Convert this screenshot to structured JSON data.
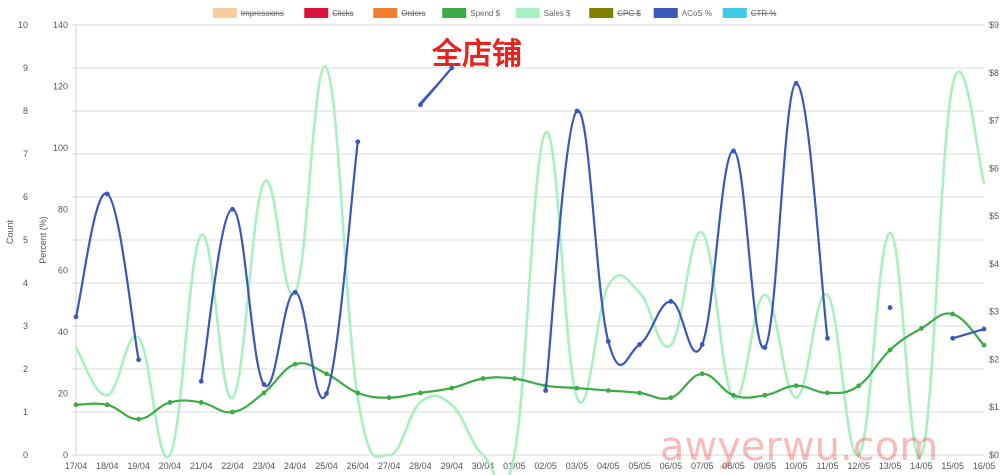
{
  "chart_data": {
    "type": "line",
    "annotation": "全店铺",
    "watermark": "awyerwu.com",
    "categories": [
      "17/04",
      "18/04",
      "19/04",
      "20/04",
      "21/04",
      "22/04",
      "23/04",
      "24/04",
      "25/04",
      "26/04",
      "27/04",
      "28/04",
      "29/04",
      "30/04",
      "01/05",
      "02/05",
      "03/05",
      "04/05",
      "05/05",
      "06/05",
      "07/05",
      "08/05",
      "09/05",
      "10/05",
      "11/05",
      "12/05",
      "13/05",
      "14/05",
      "15/05",
      "16/05"
    ],
    "axes": {
      "count": {
        "label": "Count",
        "min": 0,
        "max": 10,
        "ticks": [
          0,
          1,
          2,
          3,
          4,
          5,
          6,
          7,
          8,
          9,
          10
        ]
      },
      "percent": {
        "label": "Percent (%)",
        "min": 0,
        "max": 140,
        "ticks": [
          0,
          20,
          40,
          60,
          80,
          100,
          120,
          140
        ]
      },
      "dollar": {
        "label": "",
        "min": 0,
        "max": 9,
        "ticks": [
          "$0",
          "$1",
          "$2",
          "$3",
          "$4",
          "$5",
          "$6",
          "$7",
          "$8",
          "$9"
        ]
      }
    },
    "legend": [
      {
        "name": "Impressions",
        "color": "#f8cc9c",
        "hidden": true
      },
      {
        "name": "Clicks",
        "color": "#dc143c",
        "hidden": true
      },
      {
        "name": "Orders",
        "color": "#f08030",
        "hidden": true
      },
      {
        "name": "Spend $",
        "color": "#3cab46",
        "hidden": false
      },
      {
        "name": "Sales $",
        "color": "#a8f0c0",
        "hidden": false
      },
      {
        "name": "CPC $",
        "color": "#808000",
        "hidden": true
      },
      {
        "name": "ACoS %",
        "color": "#3b57b8",
        "hidden": false
      },
      {
        "name": "CTR %",
        "color": "#40c8e8",
        "hidden": true
      }
    ],
    "series": [
      {
        "name": "Spend $",
        "axis": "dollar",
        "color": "#3cab46",
        "values": [
          1.05,
          1.05,
          0.75,
          1.1,
          1.1,
          0.9,
          1.3,
          1.9,
          1.7,
          1.3,
          1.2,
          1.3,
          1.4,
          1.6,
          1.6,
          1.45,
          1.4,
          1.35,
          1.3,
          1.2,
          1.7,
          1.25,
          1.25,
          1.45,
          1.3,
          1.45,
          2.2,
          2.65,
          2.95,
          2.3
        ]
      },
      {
        "name": "Sales $",
        "axis": "dollar",
        "color": "#a8f0c0",
        "values": [
          2.25,
          1.25,
          2.45,
          0.0,
          4.6,
          1.2,
          5.7,
          3.4,
          8.1,
          1.2,
          0.0,
          1.1,
          1.05,
          0.0,
          0.0,
          6.75,
          1.2,
          3.55,
          3.4,
          2.3,
          4.65,
          1.2,
          3.35,
          1.2,
          3.35,
          0.0,
          4.65,
          0.0,
          7.75,
          5.7
        ]
      },
      {
        "name": "ACoS %",
        "axis": "percent",
        "color": "#3b57b8",
        "values": [
          45,
          85,
          31,
          null,
          24,
          80,
          23,
          53,
          20,
          102,
          null,
          114,
          126,
          null,
          null,
          21,
          112,
          37,
          36,
          50,
          36,
          99,
          35,
          121,
          38,
          null,
          48,
          null,
          38,
          41
        ]
      }
    ]
  }
}
